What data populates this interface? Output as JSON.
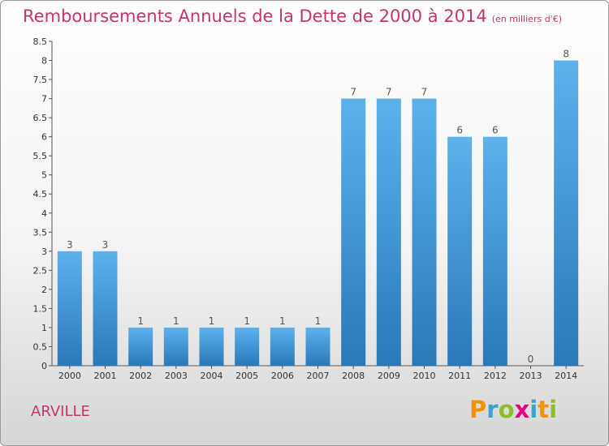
{
  "title": "Remboursements Annuels de la Dette de 2000 à 2014",
  "unit_label": "(en milliers d'€)",
  "commune": "ARVILLE",
  "logo": {
    "letters": [
      "P",
      "r",
      "o",
      "x",
      "i",
      "t",
      "i"
    ],
    "colors": [
      "#f29400",
      "#3ba3d0",
      "#8cbf26",
      "#e5007e",
      "#3ba3d0",
      "#f29400",
      "#8cbf26"
    ]
  },
  "chart_data": {
    "type": "bar",
    "title": "Remboursements Annuels de la Dette de 2000 à 2014",
    "categories": [
      "2000",
      "2001",
      "2002",
      "2003",
      "2004",
      "2005",
      "2006",
      "2007",
      "2008",
      "2009",
      "2010",
      "2011",
      "2012",
      "2013",
      "2014"
    ],
    "values": [
      3,
      3,
      1,
      1,
      1,
      1,
      1,
      1,
      7,
      7,
      7,
      6,
      6,
      0,
      8
    ],
    "labels": [
      "3",
      "3",
      "1",
      "1",
      "1",
      "1",
      "1",
      "1",
      "7",
      "7",
      "7",
      "6",
      "6",
      "0",
      "8"
    ],
    "ylim": [
      0,
      8.5
    ],
    "yticks": [
      "0",
      "0.5",
      "1",
      "1.5",
      "2",
      "2.5",
      "3",
      "3.5",
      "4",
      "4.5",
      "5",
      "5.5",
      "6",
      "6.5",
      "7",
      "7.5",
      "8",
      "8.5"
    ],
    "grid": false,
    "bar_color": "#4a9fe0"
  }
}
